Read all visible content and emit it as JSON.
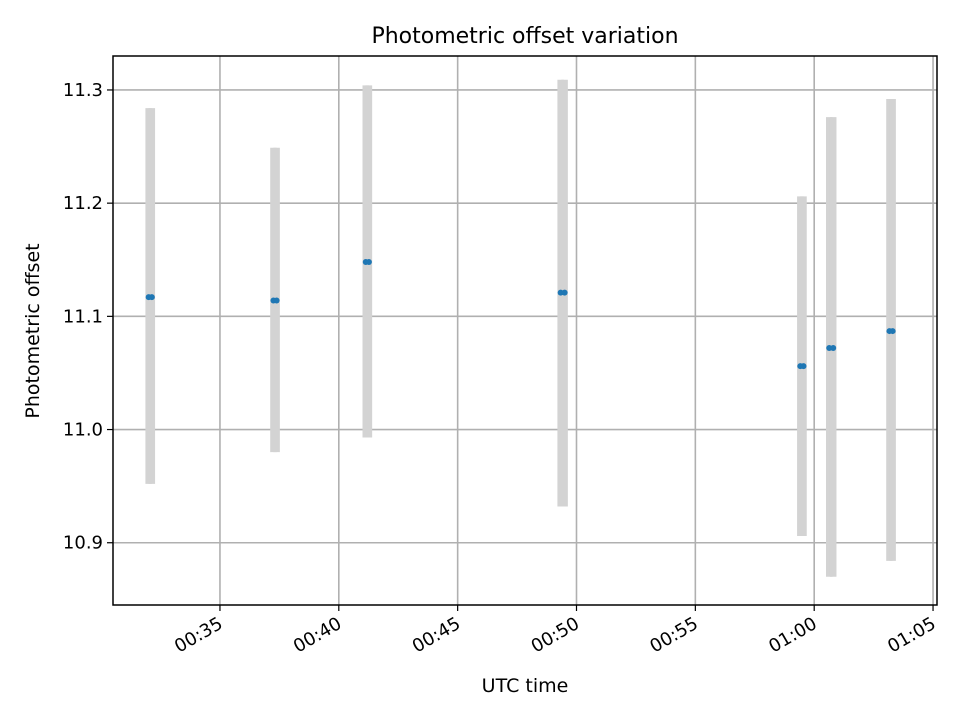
{
  "chart_data": {
    "type": "scatter",
    "title": "Photometric offset variation",
    "xlabel": "UTC time",
    "ylabel": "Photometric offset",
    "x_axis_kind": "time",
    "x_ticks": [
      "00:35",
      "00:40",
      "00:45",
      "00:50",
      "00:55",
      "01:00",
      "01:05"
    ],
    "y_ticks": [
      "10.9",
      "11.0",
      "11.1",
      "11.2",
      "11.3"
    ],
    "xlim": [
      "00:30:30",
      "01:05:10"
    ],
    "ylim": [
      10.845,
      11.33
    ],
    "grid": true,
    "colors": {
      "point": "#1f77b4",
      "errorbar": "#d3d3d3"
    },
    "points": [
      {
        "x": "00:32:00",
        "y": 11.117,
        "ymin": 10.952,
        "ymax": 11.284
      },
      {
        "x": "00:32:08",
        "y": 11.117,
        "ymin": 10.952,
        "ymax": 11.284
      },
      {
        "x": "00:37:15",
        "y": 11.114,
        "ymin": 10.98,
        "ymax": 11.249
      },
      {
        "x": "00:37:23",
        "y": 11.114,
        "ymin": 10.98,
        "ymax": 11.249
      },
      {
        "x": "00:41:08",
        "y": 11.148,
        "ymin": 10.993,
        "ymax": 11.304
      },
      {
        "x": "00:41:16",
        "y": 11.148,
        "ymin": 10.993,
        "ymax": 11.304
      },
      {
        "x": "00:49:20",
        "y": 11.121,
        "ymin": 10.932,
        "ymax": 11.309
      },
      {
        "x": "00:49:30",
        "y": 11.121,
        "ymin": 10.932,
        "ymax": 11.309
      },
      {
        "x": "00:59:25",
        "y": 11.056,
        "ymin": 10.906,
        "ymax": 11.206
      },
      {
        "x": "00:59:33",
        "y": 11.056,
        "ymin": 10.906,
        "ymax": 11.206
      },
      {
        "x": "01:00:38",
        "y": 11.072,
        "ymin": 10.87,
        "ymax": 11.276
      },
      {
        "x": "01:00:48",
        "y": 11.072,
        "ymin": 10.87,
        "ymax": 11.276
      },
      {
        "x": "01:03:10",
        "y": 11.087,
        "ymin": 10.884,
        "ymax": 11.292
      },
      {
        "x": "01:03:18",
        "y": 11.087,
        "ymin": 10.884,
        "ymax": 11.292
      }
    ]
  }
}
